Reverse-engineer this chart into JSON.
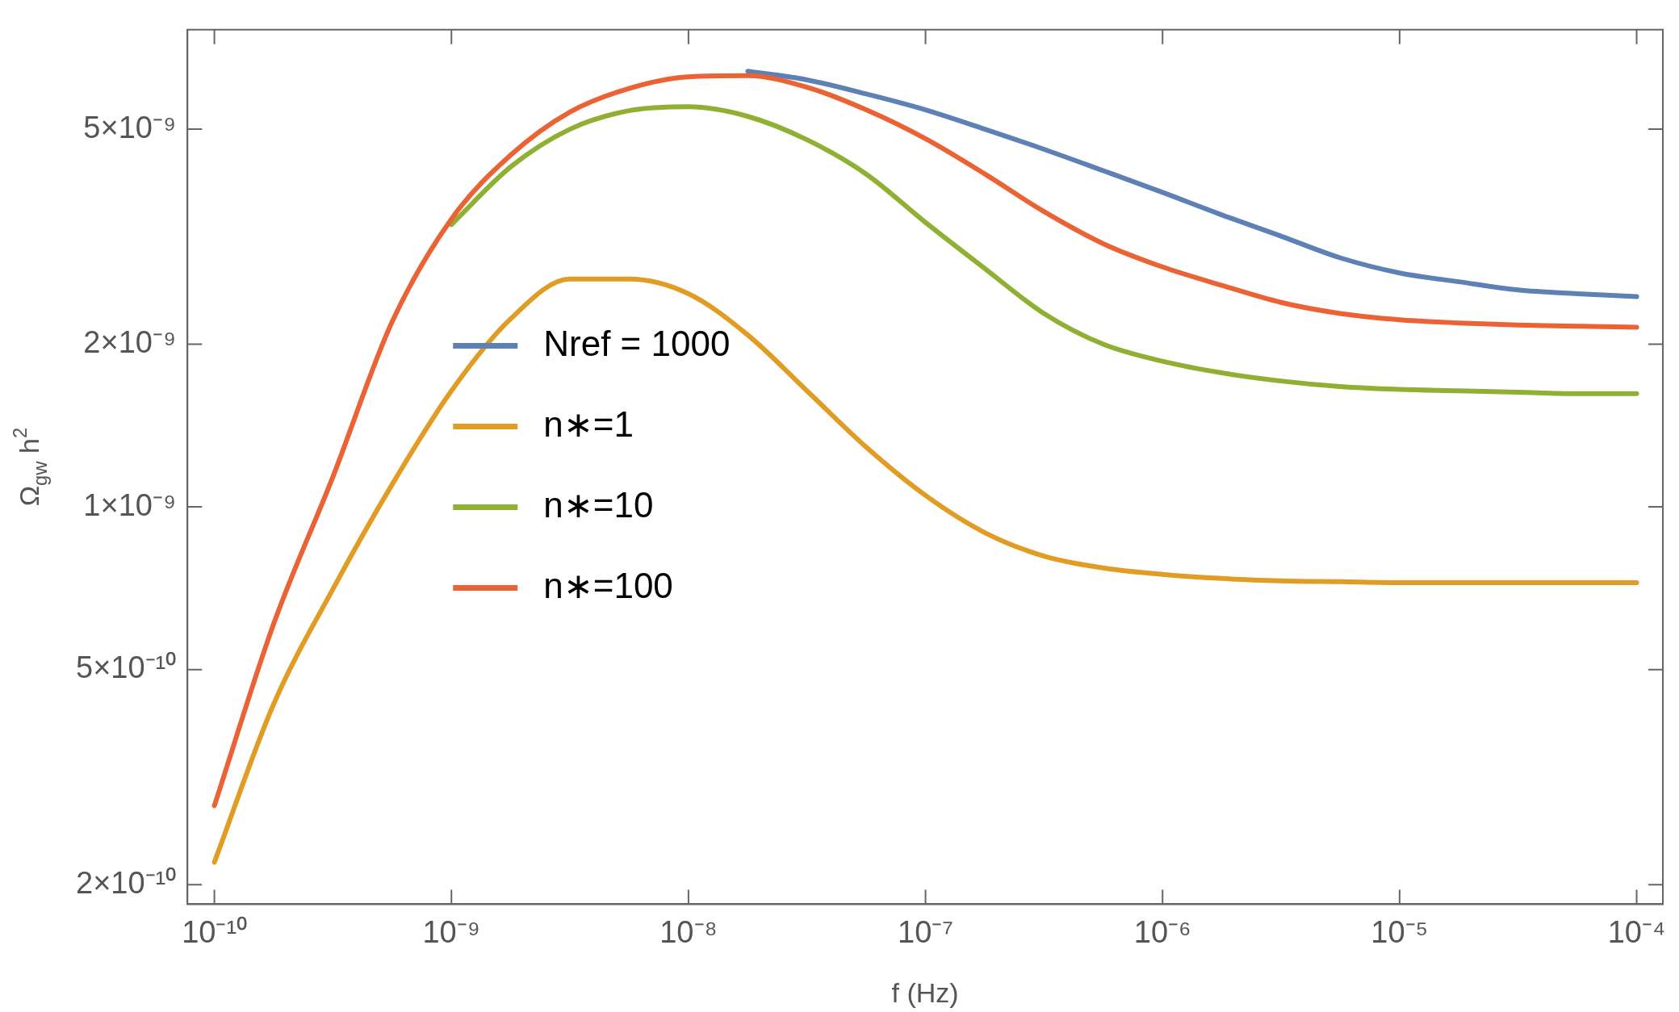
{
  "chart_data": {
    "type": "line",
    "xlabel": "f (Hz)",
    "ylabel": "Ω$_{gw}$ h$^{2}$",
    "log": "xy",
    "grid": false,
    "legend": "center",
    "marker": "none",
    "line_style": "solid",
    "x": [
      1e-10,
      1.78e-10,
      3.16e-10,
      5.62e-10,
      1e-09,
      1.78e-09,
      3.16e-09,
      5.62e-09,
      1e-08,
      1.78e-08,
      3.16e-08,
      5.62e-08,
      1e-07,
      1.78e-07,
      3.16e-07,
      5.62e-07,
      1e-06,
      1.78e-06,
      3.16e-06,
      5.62e-06,
      1e-05,
      1.78e-05,
      3.16e-05,
      5.62e-05,
      0.0001
    ],
    "xlim": [
      7.7e-11,
      0.000129
    ],
    "ylim": [
      1.84e-10,
      7.64e-09
    ],
    "xticks": [
      {
        "value": 1e-10,
        "label": "10⁻¹⁰"
      },
      {
        "value": 1e-09,
        "label": "10⁻⁹"
      },
      {
        "value": 1e-08,
        "label": "10⁻⁸"
      },
      {
        "value": 1e-07,
        "label": "10⁻⁷"
      },
      {
        "value": 1e-06,
        "label": "10⁻⁶"
      },
      {
        "value": 1e-05,
        "label": "10⁻⁵"
      },
      {
        "value": 0.0001,
        "label": "10⁻⁴"
      }
    ],
    "yticks": [
      {
        "value": 2e-10,
        "label": "2×10⁻¹⁰"
      },
      {
        "value": 5e-10,
        "label": "5×10⁻¹⁰"
      },
      {
        "value": 1e-09,
        "label": "1×10⁻⁹"
      },
      {
        "value": 2e-09,
        "label": "2×10⁻⁹"
      },
      {
        "value": 5e-09,
        "label": "5×10⁻⁹"
      }
    ],
    "series": [
      {
        "name": "Nref = 1000",
        "color": "#5e81b5",
        "values": [
          null,
          null,
          null,
          null,
          null,
          null,
          null,
          null,
          null,
          6.4e-09,
          6.17e-09,
          5.81e-09,
          5.43e-09,
          5e-09,
          4.59e-09,
          4.19e-09,
          3.82e-09,
          3.47e-09,
          3.17e-09,
          2.89e-09,
          2.71e-09,
          2.61e-09,
          2.52e-09,
          2.48e-09,
          2.45e-09
        ]
      },
      {
        "name": "n∗=1",
        "color": "#e19c24",
        "values": [
          2.2e-10,
          4.32e-10,
          7.04e-10,
          1.1e-09,
          1.64e-09,
          2.23e-09,
          2.64e-09,
          2.64e-09,
          2.48e-09,
          2.08e-09,
          1.64e-09,
          1.29e-09,
          1.05e-09,
          8.96e-10,
          8.11e-10,
          7.71e-10,
          7.5e-10,
          7.37e-10,
          7.3e-10,
          7.27e-10,
          7.24e-10,
          7.24e-10,
          7.24e-10,
          7.24e-10,
          7.24e-10
        ]
      },
      {
        "name": "n∗=10",
        "color": "#8fb032",
        "values": [
          null,
          null,
          null,
          null,
          3.33e-09,
          4.26e-09,
          5e-09,
          5.41e-09,
          5.5e-09,
          5.28e-09,
          4.78e-09,
          4.13e-09,
          3.36e-09,
          2.76e-09,
          2.28e-09,
          2e-09,
          1.86e-09,
          1.77e-09,
          1.71e-09,
          1.67e-09,
          1.65e-09,
          1.64e-09,
          1.63e-09,
          1.62e-09,
          1.62e-09
        ]
      },
      {
        "name": "n∗=100",
        "color": "#eb6235",
        "values": [
          2.8e-10,
          6.08e-10,
          1.136e-09,
          2.2e-09,
          3.41e-09,
          4.48e-09,
          5.38e-09,
          5.95e-09,
          6.25e-09,
          6.28e-09,
          5.98e-09,
          5.43e-09,
          4.8e-09,
          4.13e-09,
          3.52e-09,
          3.07e-09,
          2.78e-09,
          2.57e-09,
          2.39e-09,
          2.28e-09,
          2.22e-09,
          2.19e-09,
          2.17e-09,
          2.16e-09,
          2.15e-09
        ]
      }
    ]
  }
}
